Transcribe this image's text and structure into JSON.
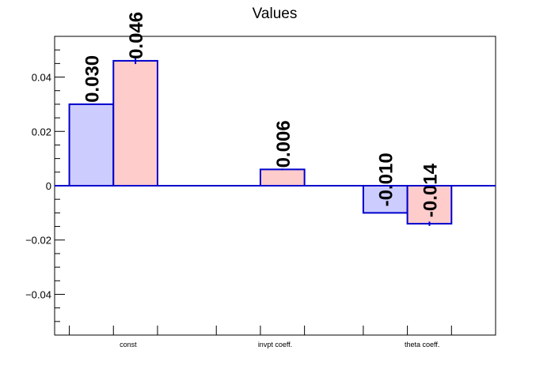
{
  "chart_data": {
    "type": "bar",
    "title": "Values",
    "categories": [
      "const",
      "invpt coeff.",
      "theta coeff."
    ],
    "series": [
      {
        "color": "#ccccff",
        "values": [
          0.03,
          0.0,
          -0.01
        ],
        "labels": [
          "0.030",
          "",
          "-0.010"
        ],
        "errors": [
          0,
          0,
          0
        ]
      },
      {
        "color": "#ffcccc",
        "values": [
          0.046,
          0.006,
          -0.014
        ],
        "labels": [
          "0.046",
          "0.006",
          "-0.014"
        ],
        "errors": [
          0.0012,
          0.0003,
          0.0008
        ]
      }
    ],
    "ylim": [
      -0.055,
      0.055
    ],
    "yticks": [
      -0.04,
      -0.02,
      0,
      0.02,
      0.04
    ],
    "ytick_labels": [
      "−0.04",
      "−0.02",
      "0",
      "0.02",
      "0.04"
    ],
    "grid": false,
    "xlabel": "",
    "ylabel": "",
    "edge_color": "#0000cc"
  }
}
